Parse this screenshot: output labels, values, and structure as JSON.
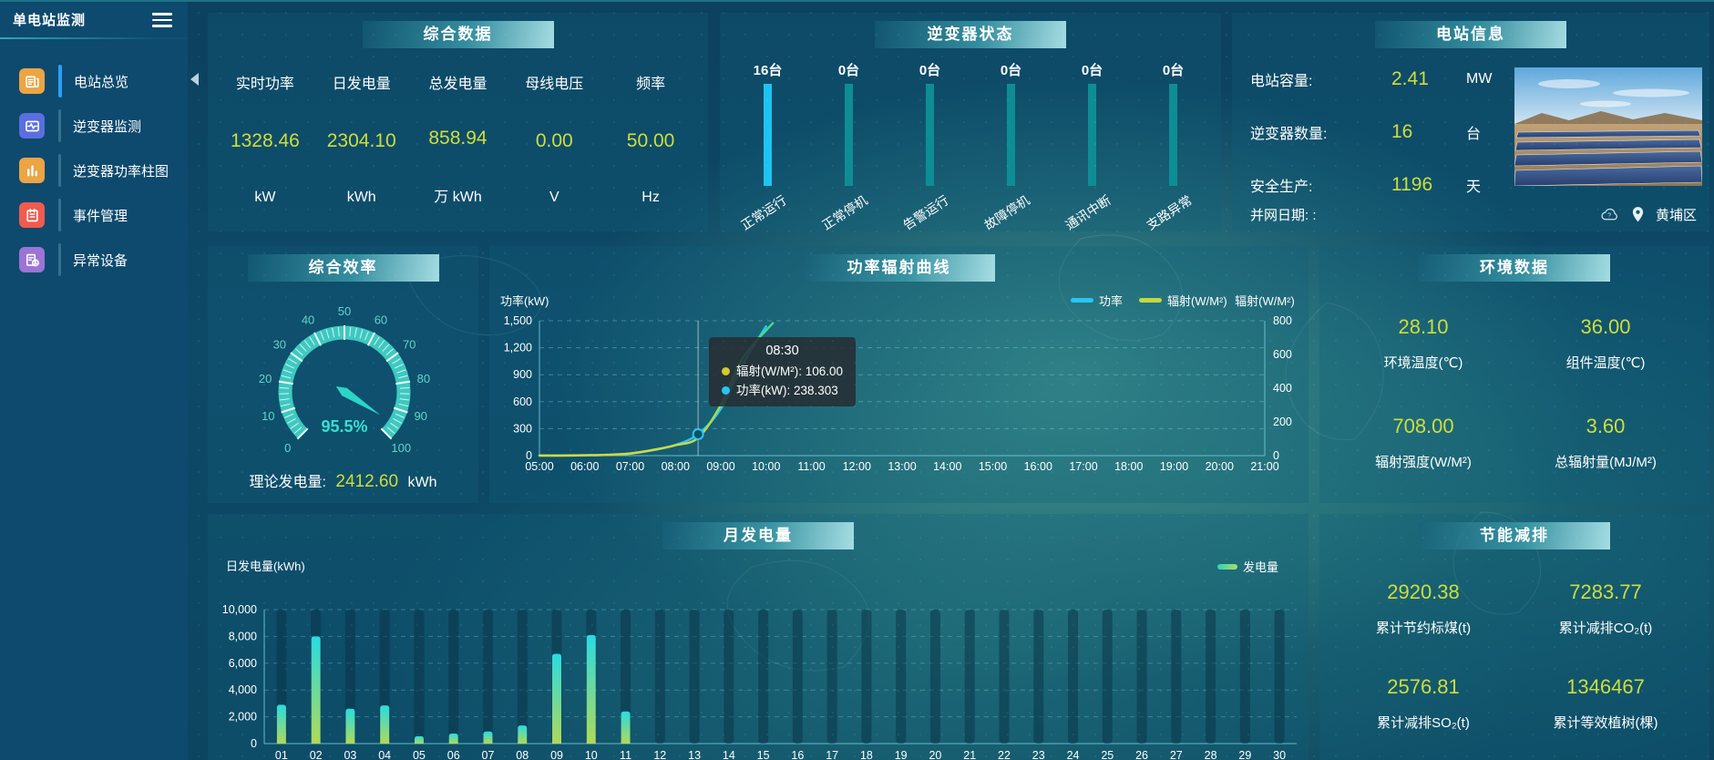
{
  "colors": {
    "accent_value": "#cfdd3c",
    "power_line": "#29c6f2",
    "radiation_line": "#c3d93f",
    "inverter_active_bar": "#1ec4f1",
    "inverter_zero_bar": "#0e8d95",
    "gauge": "#3ec9c0",
    "active_menu": "#2f9df5"
  },
  "sidebar": {
    "title": "单电站监测",
    "items": [
      {
        "id": "station-overview",
        "label": "电站总览",
        "icon": "overview",
        "color": "#ECA444",
        "active": true
      },
      {
        "id": "inverter-monitor",
        "label": "逆变器监测",
        "icon": "monitor",
        "color": "#5A6EE0",
        "active": false
      },
      {
        "id": "inverter-power-bars",
        "label": "逆变器功率柱图",
        "icon": "bars",
        "color": "#ECA444",
        "active": false
      },
      {
        "id": "event-management",
        "label": "事件管理",
        "icon": "events",
        "color": "#F05B4F",
        "active": false
      },
      {
        "id": "abnormal-devices",
        "label": "异常设备",
        "icon": "abnormal",
        "color": "#9B74D6",
        "active": false
      }
    ]
  },
  "panels": {
    "summary": {
      "title": "综合数据",
      "metrics": [
        {
          "label": "实时功率",
          "value": "1328.46",
          "unit": "kW"
        },
        {
          "label": "日发电量",
          "value": "2304.10",
          "unit": "kWh"
        },
        {
          "label": "总发电量",
          "value": "858.94",
          "unit": "万 kWh"
        },
        {
          "label": "母线电压",
          "value": "0.00",
          "unit": "V"
        },
        {
          "label": "频率",
          "value": "50.00",
          "unit": "Hz"
        }
      ]
    },
    "inverter_status": {
      "title": "逆变器状态",
      "bars": [
        {
          "count": "16台",
          "label": "正常运行",
          "value": 16,
          "active": true
        },
        {
          "count": "0台",
          "label": "正常停机",
          "value": 0,
          "active": false
        },
        {
          "count": "0台",
          "label": "告警运行",
          "value": 0,
          "active": false
        },
        {
          "count": "0台",
          "label": "故障停机",
          "value": 0,
          "active": false
        },
        {
          "count": "0台",
          "label": "通讯中断",
          "value": 0,
          "active": false
        },
        {
          "count": "0台",
          "label": "支路异常",
          "value": 0,
          "active": false
        }
      ]
    },
    "station_info": {
      "title": "电站信息",
      "rows": [
        {
          "label": "电站容量:",
          "value": "2.41",
          "unit": "MW"
        },
        {
          "label": "逆变器数量:",
          "value": "16",
          "unit": "台"
        },
        {
          "label": "安全生产:",
          "value": "1196",
          "unit": "天"
        }
      ],
      "grid_date_label": "并网日期:  :",
      "location": "黄埔区"
    },
    "efficiency": {
      "title": "综合效率",
      "theory_label": "理论发电量:",
      "theory_value": "2412.60",
      "theory_unit": "kWh"
    },
    "power_curve": {
      "title": "功率辐射曲线",
      "tooltip": {
        "time": "08:30",
        "rows": [
          {
            "dot": "#d4c92e",
            "text": "辐射(W/M²): 106.00"
          },
          {
            "dot": "#29c6f2",
            "text": "功率(kW): 238.303"
          }
        ]
      }
    },
    "environment": {
      "title": "环境数据",
      "cells": [
        {
          "value": "28.10",
          "label": "环境温度(℃)"
        },
        {
          "value": "36.00",
          "label": "组件温度(℃)"
        },
        {
          "value": "708.00",
          "label": "辐射强度(W/M²)"
        },
        {
          "value": "3.60",
          "label": "总辐射量(MJ/M²)"
        }
      ]
    },
    "monthly": {
      "title": "月发电量"
    },
    "saving": {
      "title": "节能减排",
      "cells": [
        {
          "value": "2920.38",
          "label": "累计节约标煤(t)"
        },
        {
          "value": "7283.77",
          "label": "累计减排CO₂(t)"
        },
        {
          "value": "2576.81",
          "label": "累计减排SO₂(t)"
        },
        {
          "value": "1346467",
          "label": "累计等效植树(棵)"
        }
      ]
    }
  },
  "chart_data": [
    {
      "type": "line",
      "title": "功率辐射曲线",
      "x_range": [
        5,
        21
      ],
      "x_ticks": [
        "05:00",
        "06:00",
        "07:00",
        "08:00",
        "09:00",
        "10:00",
        "11:00",
        "12:00",
        "13:00",
        "14:00",
        "15:00",
        "16:00",
        "17:00",
        "18:00",
        "19:00",
        "20:00",
        "21:00"
      ],
      "left_axis": {
        "name": "功率(kW)",
        "min": 0,
        "max": 1500,
        "tick_labels": [
          "0",
          "300",
          "600",
          "900",
          "1,200",
          "1,500"
        ]
      },
      "right_axis": {
        "name": "辐射(W/M²)",
        "min": 0,
        "max": 800,
        "tick_labels": [
          "0",
          "200",
          "400",
          "600",
          "800"
        ]
      },
      "legend": [
        {
          "name": "功率",
          "color": "#29c6f2"
        },
        {
          "name": "辐射(W/M²)",
          "color": "#c3d93f"
        }
      ],
      "series": [
        {
          "name": "功率",
          "axis": "left",
          "color": "#29c6f2",
          "points": [
            [
              5,
              2
            ],
            [
              5.5,
              2
            ],
            [
              6,
              4
            ],
            [
              6.5,
              9
            ],
            [
              7,
              22
            ],
            [
              7.5,
              60
            ],
            [
              8,
              118
            ],
            [
              8.5,
              238.303
            ],
            [
              9,
              520
            ],
            [
              9.5,
              1030
            ],
            [
              10,
              1437
            ]
          ]
        },
        {
          "name": "辐射(W/M²)",
          "axis": "right",
          "color": "#c3d93f",
          "points": [
            [
              5,
              0
            ],
            [
              5.5,
              0
            ],
            [
              6,
              2
            ],
            [
              6.5,
              5
            ],
            [
              7,
              13
            ],
            [
              7.5,
              34
            ],
            [
              8,
              62
            ],
            [
              8.5,
              106
            ],
            [
              9,
              300
            ],
            [
              9.5,
              585
            ],
            [
              10.15,
              786
            ]
          ]
        }
      ],
      "hover": {
        "x": 8.5,
        "power": 238.303,
        "radiation": 106
      }
    },
    {
      "type": "bar",
      "title": "月发电量",
      "ylabel": "日发电量(kWh)",
      "ylim": [
        0,
        10000
      ],
      "tick_labels": [
        "0",
        "2,000",
        "4,000",
        "6,000",
        "8,000",
        "10,000"
      ],
      "legend": "发电量",
      "categories": [
        "01",
        "02",
        "03",
        "04",
        "05",
        "06",
        "07",
        "08",
        "09",
        "10",
        "11",
        "12",
        "13",
        "14",
        "15",
        "16",
        "17",
        "18",
        "19",
        "20",
        "21",
        "22",
        "23",
        "24",
        "25",
        "26",
        "27",
        "28",
        "29",
        "30"
      ],
      "values": [
        2900,
        8000,
        2600,
        2850,
        550,
        750,
        900,
        1350,
        6700,
        8100,
        2400,
        0,
        0,
        0,
        0,
        0,
        0,
        0,
        0,
        0,
        0,
        0,
        0,
        0,
        0,
        0,
        0,
        0,
        0,
        0
      ]
    },
    {
      "type": "gauge",
      "title": "综合效率",
      "value": 95.5,
      "display": "95.5%",
      "min": 0,
      "max": 100,
      "tick_labels": [
        "0",
        "10",
        "20",
        "30",
        "40",
        "50",
        "60",
        "70",
        "80",
        "90",
        "100"
      ]
    },
    {
      "type": "bar",
      "title": "逆变器状态",
      "categories": [
        "正常运行",
        "正常停机",
        "告警运行",
        "故障停机",
        "通讯中断",
        "支路异常"
      ],
      "values": [
        16,
        0,
        0,
        0,
        0,
        0
      ],
      "unit": "台"
    }
  ]
}
